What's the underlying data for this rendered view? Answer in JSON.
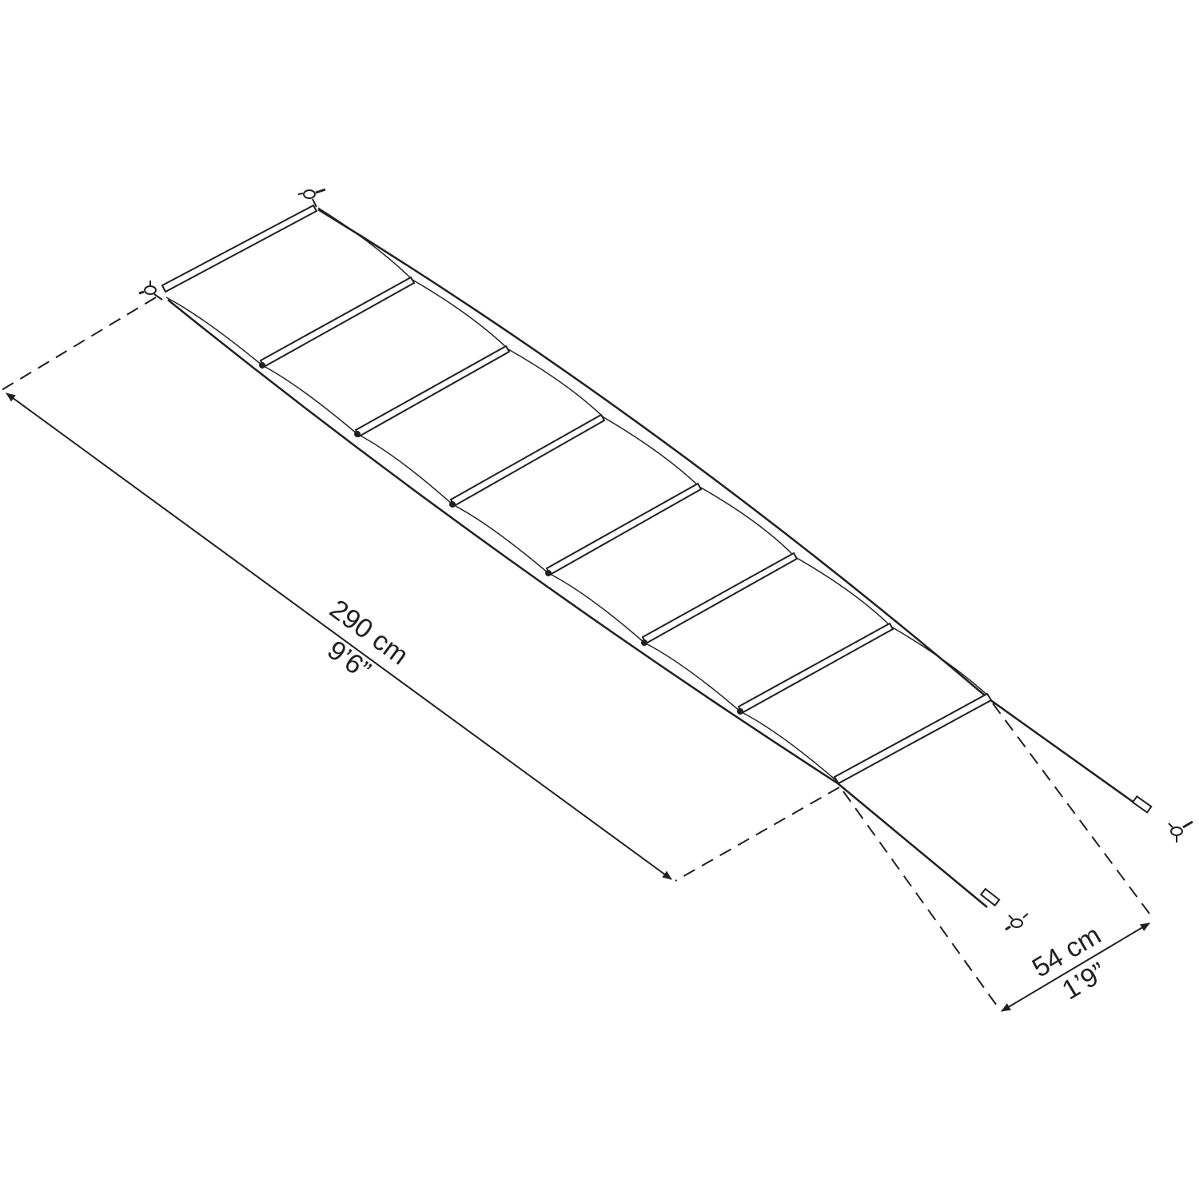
{
  "diagram": {
    "line_color": "#231f20",
    "background": "#ffffff",
    "bar_count": 8,
    "fasteners": [
      "wing-bolt-icon",
      "wing-bolt-icon",
      "wing-bolt-icon",
      "wing-bolt-icon"
    ]
  },
  "dimensions": {
    "length": {
      "metric": "290 cm",
      "imperial": "9’6”"
    },
    "width": {
      "metric": "54 cm",
      "imperial": "1’9”"
    }
  }
}
